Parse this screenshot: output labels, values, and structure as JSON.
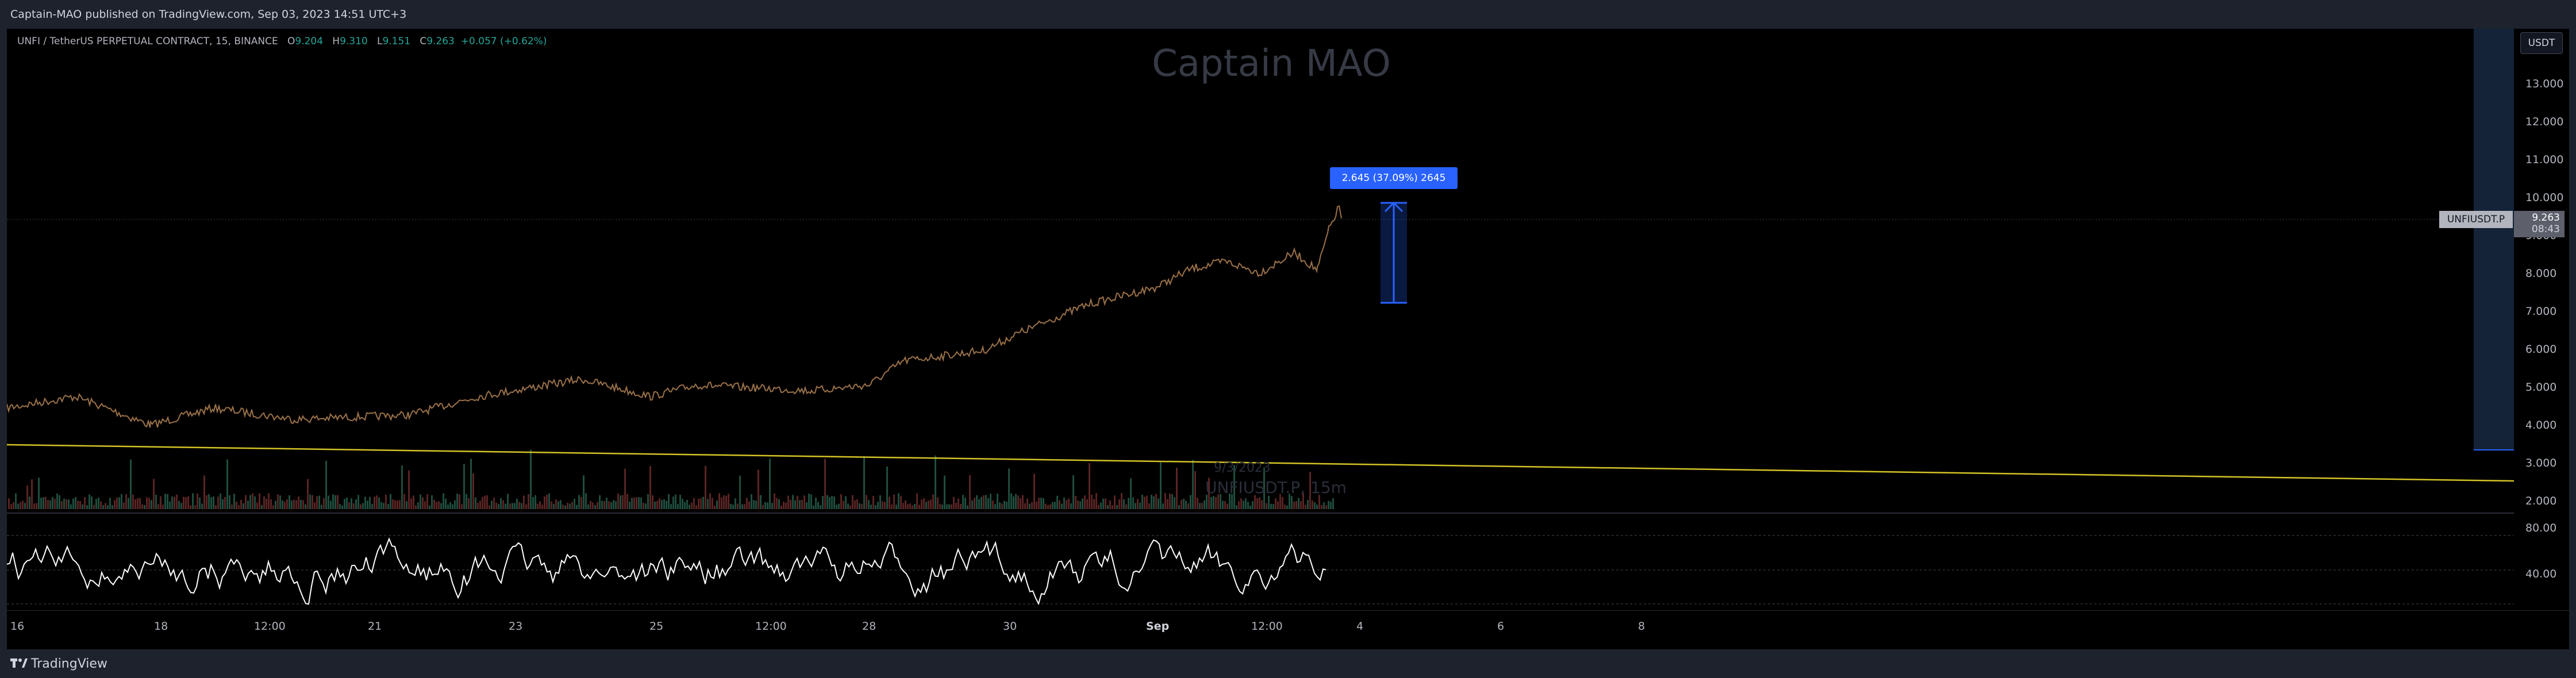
{
  "header": {
    "published": "Captain-MAO published on TradingView.com, Sep 03, 2023 14:51 UTC+3"
  },
  "legend": {
    "symbol": "UNFI / TetherUS PERPETUAL CONTRACT, 15, BINANCE",
    "o_label": "O",
    "o": "9.204",
    "h_label": "H",
    "h": "9.310",
    "l_label": "L",
    "l": "9.151",
    "c_label": "C",
    "c": "9.263",
    "change": "+0.057 (+0.62%)"
  },
  "watermark": "Captain MAO",
  "volume_watermark": {
    "date": "9/3/2023",
    "symbol": "UNFIUSDT.P, 15m"
  },
  "price_scale": {
    "currency": "USDT",
    "ticks": [
      "13.000",
      "12.000",
      "11.000",
      "10.000",
      "9.000",
      "8.000",
      "7.000",
      "6.000",
      "5.000",
      "4.000",
      "3.000",
      "2.000"
    ],
    "rsi_ticks": [
      "80.00",
      "40.00"
    ]
  },
  "last_price": {
    "symbol_tag": "UNFIUSDT.P",
    "price": "9.263",
    "countdown": "08:43"
  },
  "measure": {
    "label": "2.645 (37.09%) 2645"
  },
  "time_axis": [
    "16",
    "18",
    "12:00",
    "21",
    "23",
    "25",
    "12:00",
    "28",
    "30",
    "Sep",
    "12:00",
    "4",
    "6",
    "8"
  ],
  "footer": {
    "brand": "TradingView"
  },
  "colors": {
    "background": "#000000",
    "frame": "#1e222d",
    "accent": "#2962ff",
    "trendline": "#d4c326",
    "up": "#26a69a",
    "down": "#ef5350",
    "rsi": "#ffffff"
  }
}
